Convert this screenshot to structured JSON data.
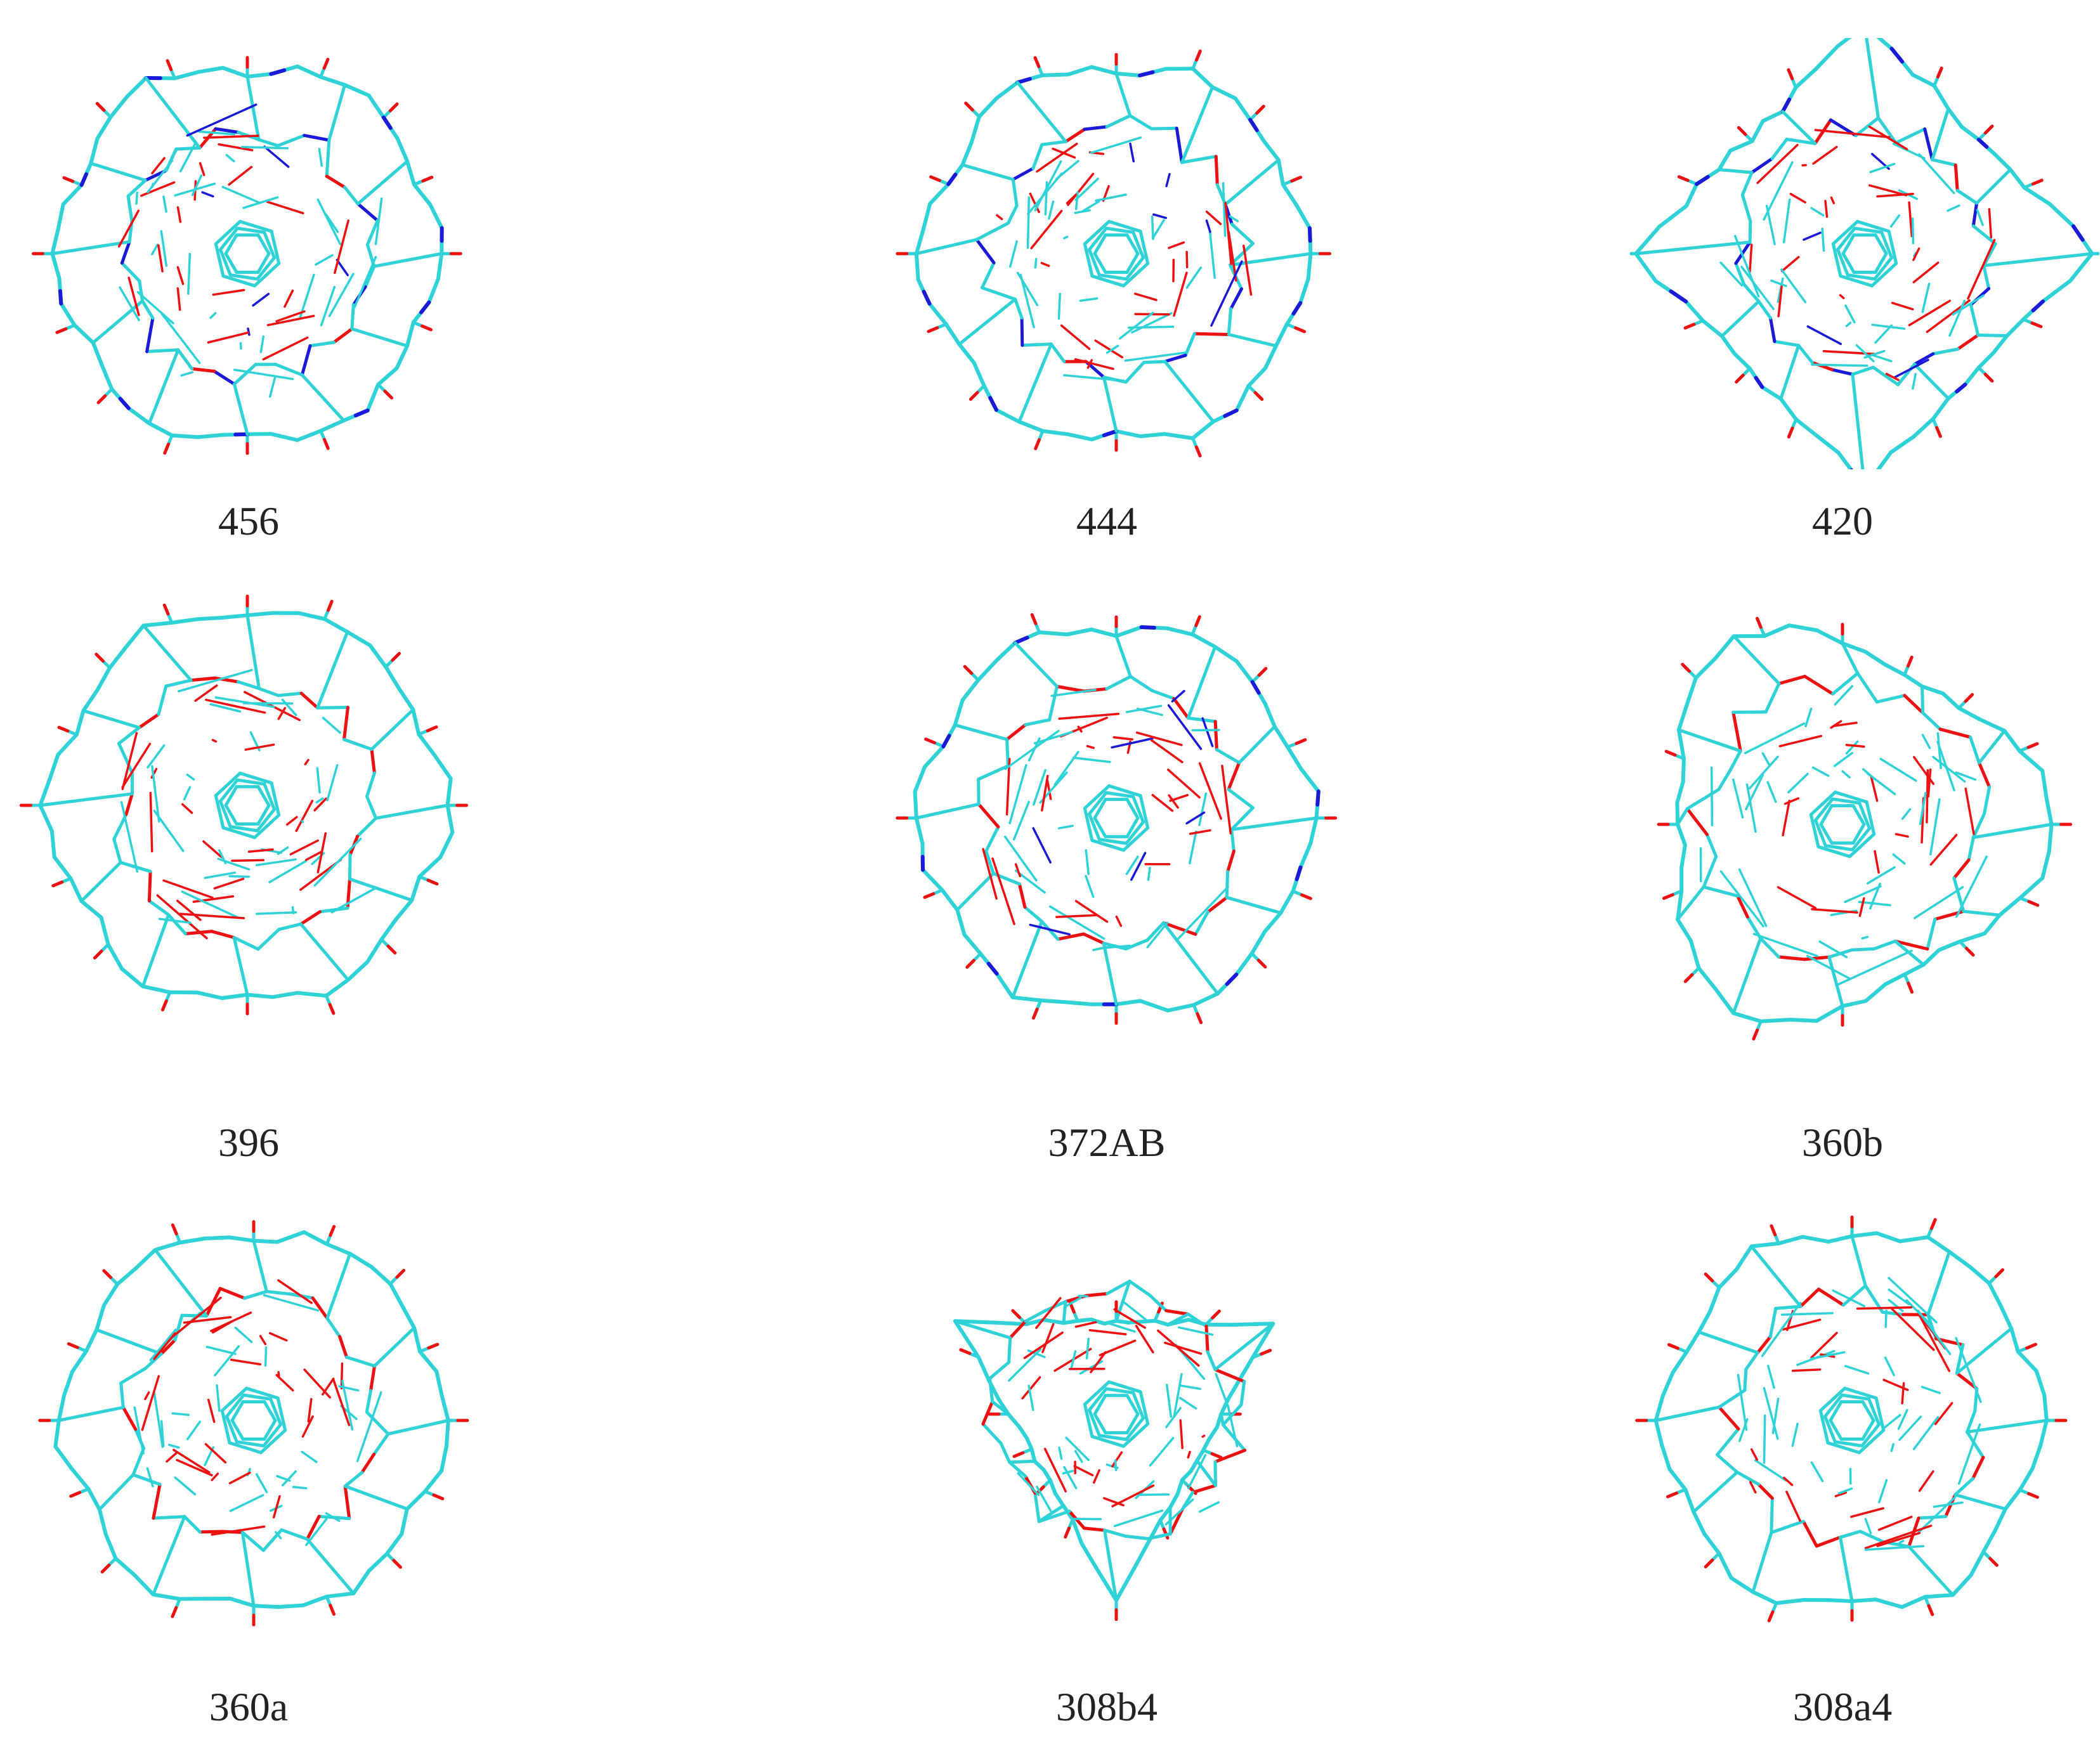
{
  "colors": {
    "carbon": "#2fd2d6",
    "oxygen": "#ee1111",
    "nitrogen": "#1a1ad8",
    "background": "#ffffff",
    "label": "#222222"
  },
  "panels": [
    {
      "label": "456",
      "shape": "round",
      "accent": "nitrogen",
      "seed": 11
    },
    {
      "label": "444",
      "shape": "round",
      "accent": "nitrogen",
      "seed": 23
    },
    {
      "label": "420",
      "shape": "square",
      "accent": "nitrogen",
      "seed": 37
    },
    {
      "label": "396",
      "shape": "round",
      "accent": "oxygen",
      "seed": 41
    },
    {
      "label": "372AB",
      "shape": "round",
      "accent": "mixed",
      "seed": 53
    },
    {
      "label": "360b",
      "shape": "trefoil",
      "accent": "oxygen",
      "seed": 67
    },
    {
      "label": "360a",
      "shape": "round",
      "accent": "oxygen",
      "seed": 79
    },
    {
      "label": "308b4",
      "shape": "triangle",
      "accent": "oxygen",
      "seed": 83
    },
    {
      "label": "308a4",
      "shape": "round",
      "accent": "oxygen",
      "seed": 97
    }
  ]
}
